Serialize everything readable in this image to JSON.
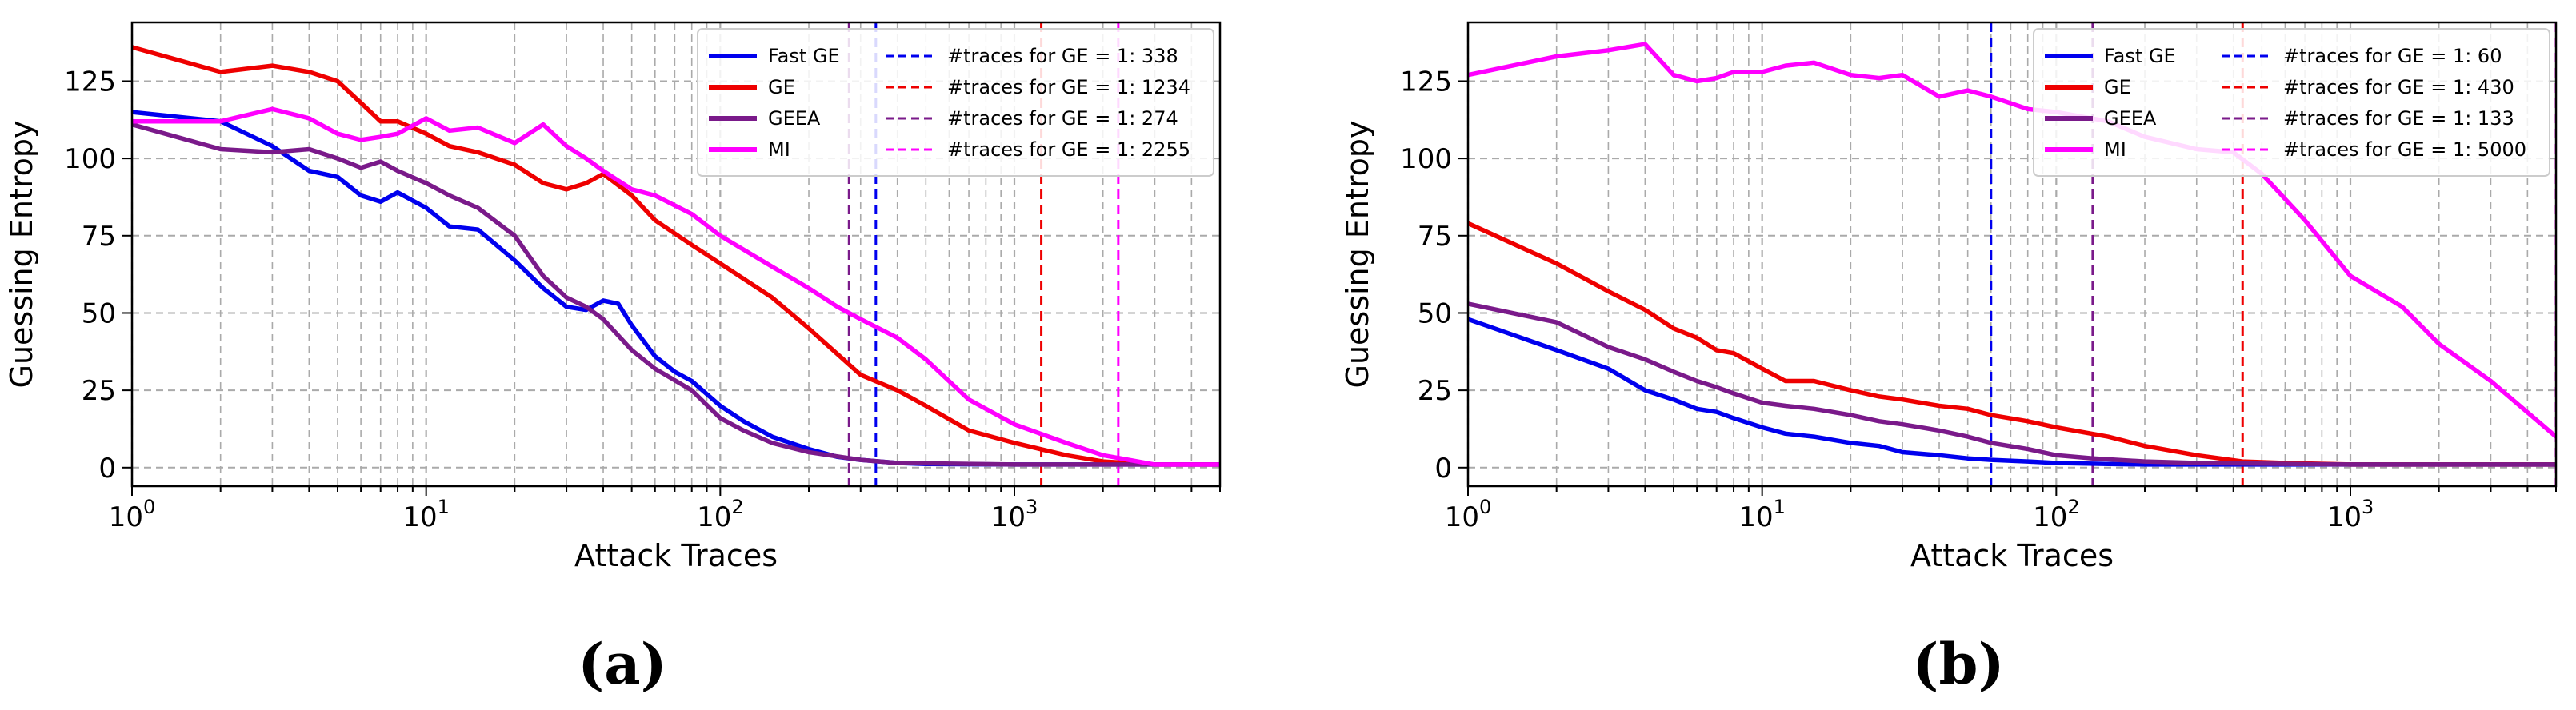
{
  "chart_data": [
    {
      "type": "line",
      "panel_caption": "(a)",
      "xlabel": "Attack Traces",
      "ylabel": "Guessing Entropy",
      "xscale": "log",
      "xlim": [
        1,
        5000
      ],
      "ylim": [
        -6,
        144
      ],
      "yticks": [
        0,
        25,
        50,
        75,
        100,
        125
      ],
      "xticks": [
        {
          "value": 1,
          "base": "10",
          "exp": "0"
        },
        {
          "value": 10,
          "base": "10",
          "exp": "1"
        },
        {
          "value": 100,
          "base": "10",
          "exp": "2"
        },
        {
          "value": 1000,
          "base": "10",
          "exp": "3"
        }
      ],
      "grid": true,
      "legend_position": "top-right",
      "series": [
        {
          "name": "Fast GE",
          "color": "#0000ee",
          "x": [
            1,
            2,
            3,
            4,
            5,
            6,
            7,
            8,
            10,
            12,
            15,
            20,
            25,
            30,
            35,
            40,
            45,
            50,
            60,
            70,
            80,
            100,
            120,
            150,
            200,
            250,
            300,
            400,
            500,
            1000,
            2000,
            5000
          ],
          "values": [
            115,
            112,
            104,
            96,
            94,
            88,
            86,
            89,
            84,
            78,
            77,
            67,
            58,
            52,
            51,
            54,
            53,
            46,
            36,
            31,
            28,
            20,
            15,
            10,
            6,
            3.5,
            2.5,
            1.5,
            1.2,
            1,
            1,
            1
          ]
        },
        {
          "name": "GE",
          "color": "#ee0000",
          "x": [
            1,
            2,
            3,
            4,
            5,
            6,
            7,
            8,
            10,
            12,
            15,
            20,
            25,
            30,
            35,
            40,
            50,
            60,
            80,
            100,
            150,
            200,
            300,
            400,
            500,
            700,
            1000,
            1500,
            2000,
            3000,
            5000
          ],
          "values": [
            136,
            128,
            130,
            128,
            125,
            118,
            112,
            112,
            108,
            104,
            102,
            98,
            92,
            90,
            92,
            95,
            88,
            80,
            72,
            66,
            55,
            45,
            30,
            25,
            20,
            12,
            8,
            4,
            2,
            1,
            1
          ]
        },
        {
          "name": "GEEA",
          "color": "#7a1a8a",
          "x": [
            1,
            2,
            3,
            4,
            5,
            6,
            7,
            8,
            10,
            12,
            15,
            20,
            25,
            30,
            35,
            40,
            50,
            60,
            80,
            100,
            120,
            150,
            200,
            300,
            400,
            1000,
            2000,
            5000
          ],
          "values": [
            111,
            103,
            102,
            103,
            100,
            97,
            99,
            96,
            92,
            88,
            84,
            75,
            62,
            55,
            52,
            48,
            38,
            32,
            25,
            16,
            12,
            8,
            5,
            2.5,
            1.5,
            1,
            1,
            1
          ]
        },
        {
          "name": "MI",
          "color": "#ff00ff",
          "x": [
            1,
            2,
            3,
            4,
            5,
            6,
            7,
            8,
            10,
            12,
            15,
            20,
            25,
            30,
            35,
            40,
            50,
            60,
            80,
            100,
            150,
            200,
            250,
            300,
            400,
            500,
            700,
            1000,
            1500,
            2000,
            3000,
            5000
          ],
          "values": [
            112,
            112,
            116,
            113,
            108,
            106,
            107,
            108,
            113,
            109,
            110,
            105,
            111,
            104,
            100,
            96,
            90,
            88,
            82,
            75,
            65,
            58,
            52,
            48,
            42,
            35,
            22,
            14,
            8,
            4,
            1,
            1
          ]
        }
      ],
      "vlines": [
        {
          "label": "#traces for GE = 1: 338",
          "x": 338,
          "color": "#0000ee"
        },
        {
          "label": "#traces for GE = 1: 1234",
          "x": 1234,
          "color": "#ee0000"
        },
        {
          "label": "#traces for GE = 1: 274",
          "x": 274,
          "color": "#7a1a8a"
        },
        {
          "label": "#traces for GE = 1: 2255",
          "x": 2255,
          "color": "#ff00ff"
        }
      ]
    },
    {
      "type": "line",
      "panel_caption": "(b)",
      "xlabel": "Attack Traces",
      "ylabel": "Guessing Entropy",
      "xscale": "log",
      "xlim": [
        1,
        5000
      ],
      "ylim": [
        -6,
        144
      ],
      "yticks": [
        0,
        25,
        50,
        75,
        100,
        125
      ],
      "xticks": [
        {
          "value": 1,
          "base": "10",
          "exp": "0"
        },
        {
          "value": 10,
          "base": "10",
          "exp": "1"
        },
        {
          "value": 100,
          "base": "10",
          "exp": "2"
        },
        {
          "value": 1000,
          "base": "10",
          "exp": "3"
        }
      ],
      "grid": true,
      "legend_position": "top-right",
      "series": [
        {
          "name": "Fast GE",
          "color": "#0000ee",
          "x": [
            1,
            2,
            3,
            4,
            5,
            6,
            7,
            8,
            10,
            12,
            15,
            20,
            25,
            30,
            40,
            50,
            60,
            80,
            100,
            150,
            200,
            300,
            500,
            1000,
            5000
          ],
          "values": [
            48,
            38,
            32,
            25,
            22,
            19,
            18,
            16,
            13,
            11,
            10,
            8,
            7,
            5,
            4,
            3,
            2.5,
            2,
            1.5,
            1.2,
            1,
            1,
            1,
            1,
            1
          ]
        },
        {
          "name": "GE",
          "color": "#ee0000",
          "x": [
            1,
            2,
            3,
            4,
            5,
            6,
            7,
            8,
            10,
            12,
            15,
            20,
            25,
            30,
            40,
            50,
            60,
            80,
            100,
            150,
            200,
            300,
            430,
            600,
            1000,
            5000
          ],
          "values": [
            79,
            66,
            57,
            51,
            45,
            42,
            38,
            37,
            32,
            28,
            28,
            25,
            23,
            22,
            20,
            19,
            17,
            15,
            13,
            10,
            7,
            4,
            2,
            1.5,
            1,
            1
          ]
        },
        {
          "name": "GEEA",
          "color": "#7a1a8a",
          "x": [
            1,
            2,
            3,
            4,
            5,
            6,
            7,
            8,
            10,
            12,
            15,
            20,
            25,
            30,
            40,
            50,
            60,
            80,
            100,
            133,
            200,
            300,
            1000,
            5000
          ],
          "values": [
            53,
            47,
            39,
            35,
            31,
            28,
            26,
            24,
            21,
            20,
            19,
            17,
            15,
            14,
            12,
            10,
            8,
            6,
            4,
            3,
            2,
            1.5,
            1,
            1
          ]
        },
        {
          "name": "MI",
          "color": "#ff00ff",
          "x": [
            1,
            2,
            3,
            4,
            5,
            6,
            7,
            8,
            10,
            12,
            15,
            20,
            25,
            30,
            40,
            50,
            60,
            80,
            100,
            150,
            200,
            300,
            400,
            500,
            700,
            1000,
            1500,
            2000,
            3000,
            5000
          ],
          "values": [
            127,
            133,
            135,
            137,
            127,
            125,
            126,
            128,
            128,
            130,
            131,
            127,
            126,
            127,
            120,
            122,
            120,
            116,
            115,
            112,
            107,
            103,
            102,
            95,
            80,
            62,
            52,
            40,
            28,
            10
          ]
        }
      ],
      "vlines": [
        {
          "label": "#traces for GE = 1: 60",
          "x": 60,
          "color": "#0000ee"
        },
        {
          "label": "#traces for GE = 1: 430",
          "x": 430,
          "color": "#ee0000"
        },
        {
          "label": "#traces for GE = 1: 133",
          "x": 133,
          "color": "#7a1a8a"
        },
        {
          "label": "#traces for GE = 1: 5000",
          "x": 5000,
          "color": "#ff00ff"
        }
      ]
    }
  ]
}
